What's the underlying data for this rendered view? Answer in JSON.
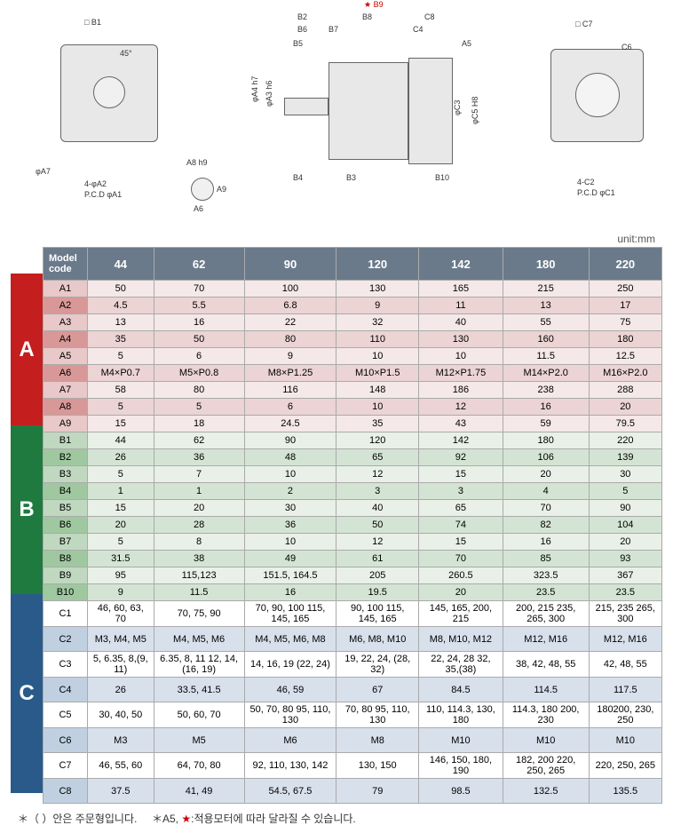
{
  "diagram": {
    "labels": {
      "b1": "□ B1",
      "angle45": "45°",
      "phiA7": "φA7",
      "fourPhiA2": "4-φA2",
      "pcdPhiA1": "P.C.D φA1",
      "a8h9": "A8  h9",
      "a9": "A9",
      "a6": "A6",
      "b9star": "★ B9",
      "b2": "B2",
      "b8": "B8",
      "c8": "C8",
      "b6": "B6",
      "b7": "B7",
      "c4": "C4",
      "b5": "B5",
      "a5": "A5",
      "phiA4h7": "φA4  h7",
      "phiA3h6": "φA3  h6",
      "phiC3": "φC3",
      "phiC5H8": "φC5  H8",
      "b4": "B4",
      "b3": "B3",
      "b10": "B10",
      "c7": "□ C7",
      "c6": "C6",
      "fourC2": "4-C2",
      "pcdPhiC1": "P.C.D φC1"
    }
  },
  "unitLabel": "unit:mm",
  "table": {
    "headers": [
      "Model code",
      "44",
      "62",
      "90",
      "120",
      "142",
      "180",
      "220"
    ],
    "sections": [
      {
        "id": "A",
        "color": "#c41e1e",
        "rows": [
          {
            "code": "A1",
            "vals": [
              "50",
              "70",
              "100",
              "130",
              "165",
              "215",
              "250"
            ]
          },
          {
            "code": "A2",
            "vals": [
              "4.5",
              "5.5",
              "6.8",
              "9",
              "11",
              "13",
              "17"
            ]
          },
          {
            "code": "A3",
            "vals": [
              "13",
              "16",
              "22",
              "32",
              "40",
              "55",
              "75"
            ]
          },
          {
            "code": "A4",
            "vals": [
              "35",
              "50",
              "80",
              "110",
              "130",
              "160",
              "180"
            ]
          },
          {
            "code": "A5",
            "vals": [
              "5",
              "6",
              "9",
              "10",
              "10",
              "11.5",
              "12.5"
            ]
          },
          {
            "code": "A6",
            "vals": [
              "M4×P0.7",
              "M5×P0.8",
              "M8×P1.25",
              "M10×P1.5",
              "M12×P1.75",
              "M14×P2.0",
              "M16×P2.0"
            ]
          },
          {
            "code": "A7",
            "vals": [
              "58",
              "80",
              "116",
              "148",
              "186",
              "238",
              "288"
            ]
          },
          {
            "code": "A8",
            "vals": [
              "5",
              "5",
              "6",
              "10",
              "12",
              "16",
              "20"
            ]
          },
          {
            "code": "A9",
            "vals": [
              "15",
              "18",
              "24.5",
              "35",
              "43",
              "59",
              "79.5"
            ]
          }
        ]
      },
      {
        "id": "B",
        "color": "#1e7a3e",
        "rows": [
          {
            "code": "B1",
            "vals": [
              "44",
              "62",
              "90",
              "120",
              "142",
              "180",
              "220"
            ]
          },
          {
            "code": "B2",
            "vals": [
              "26",
              "36",
              "48",
              "65",
              "92",
              "106",
              "139"
            ]
          },
          {
            "code": "B3",
            "vals": [
              "5",
              "7",
              "10",
              "12",
              "15",
              "20",
              "30"
            ]
          },
          {
            "code": "B4",
            "vals": [
              "1",
              "1",
              "2",
              "3",
              "3",
              "4",
              "5"
            ]
          },
          {
            "code": "B5",
            "vals": [
              "15",
              "20",
              "30",
              "40",
              "65",
              "70",
              "90"
            ]
          },
          {
            "code": "B6",
            "vals": [
              "20",
              "28",
              "36",
              "50",
              "74",
              "82",
              "104"
            ]
          },
          {
            "code": "B7",
            "vals": [
              "5",
              "8",
              "10",
              "12",
              "15",
              "16",
              "20"
            ]
          },
          {
            "code": "B8",
            "vals": [
              "31.5",
              "38",
              "49",
              "61",
              "70",
              "85",
              "93"
            ]
          },
          {
            "code": "B9",
            "vals": [
              "95",
              "115,123",
              "151.5, 164.5",
              "205",
              "260.5",
              "323.5",
              "367"
            ]
          },
          {
            "code": "B10",
            "vals": [
              "9",
              "11.5",
              "16",
              "19.5",
              "20",
              "23.5",
              "23.5"
            ]
          }
        ]
      },
      {
        "id": "C",
        "color": "#2a5a8a",
        "rows": [
          {
            "code": "C1",
            "vals": [
              "46, 60, 63, 70",
              "70, 75, 90",
              "70, 90, 100 115, 145, 165",
              "90, 100 115, 145, 165",
              "145, 165, 200, 215",
              "200, 215 235, 265, 300",
              "215, 235 265, 300"
            ]
          },
          {
            "code": "C2",
            "vals": [
              "M3, M4, M5",
              "M4, M5, M6",
              "M4, M5, M6, M8",
              "M6, M8, M10",
              "M8, M10, M12",
              "M12, M16",
              "M12, M16"
            ]
          },
          {
            "code": "C3",
            "vals": [
              "5, 6.35, 8,(9, 11)",
              "6.35, 8, 11 12, 14,(16, 19)",
              "14, 16, 19 (22, 24)",
              "19, 22, 24, (28, 32)",
              "22, 24, 28 32, 35,(38)",
              "38, 42, 48, 55",
              "42, 48, 55"
            ]
          },
          {
            "code": "C4",
            "vals": [
              "26",
              "33.5, 41.5",
              "46, 59",
              "67",
              "84.5",
              "114.5",
              "117.5"
            ]
          },
          {
            "code": "C5",
            "vals": [
              "30, 40, 50",
              "50, 60, 70",
              "50, 70, 80 95, 110, 130",
              "70, 80 95, 110, 130",
              "110, 114.3, 130, 180",
              "114.3, 180 200, 230",
              "180200, 230, 250"
            ]
          },
          {
            "code": "C6",
            "vals": [
              "M3",
              "M5",
              "M6",
              "M8",
              "M10",
              "M10",
              "M10"
            ]
          },
          {
            "code": "C7",
            "vals": [
              "46, 55, 60",
              "64, 70, 80",
              "92, 110, 130, 142",
              "130, 150",
              "146, 150, 180, 190",
              "182, 200 220, 250, 265",
              "220, 250, 265"
            ]
          },
          {
            "code": "C8",
            "vals": [
              "37.5",
              "41, 49",
              "54.5, 67.5",
              "79",
              "98.5",
              "132.5",
              "135.5"
            ]
          }
        ]
      }
    ]
  },
  "footnote": {
    "part1": "＊（ ）안은 주문형입니다.",
    "part2": "＊A5, ",
    "star": "★",
    "part3": ":적용모터에 따라 달라질 수 있습니다."
  },
  "rowHeights": {
    "A": 19,
    "B": 19,
    "C": 28
  }
}
